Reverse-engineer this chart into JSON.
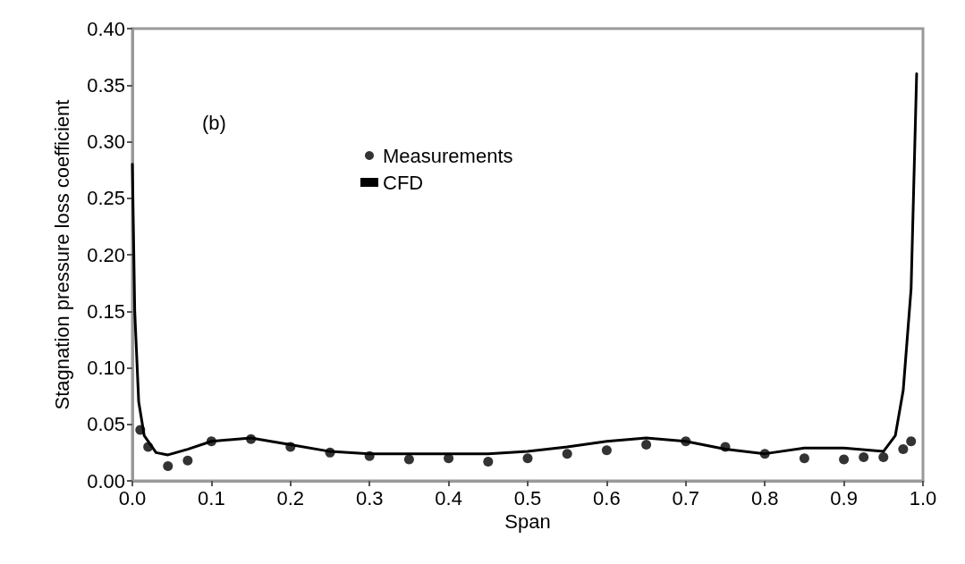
{
  "chart_data": {
    "type": "scatter",
    "xlabel": "Span",
    "ylabel": "Stagnation pressure loss coefficient",
    "annotations": [
      "(b)"
    ],
    "xlim": [
      0,
      1
    ],
    "ylim": [
      0,
      0.4
    ],
    "xticks": [
      {
        "value": 0,
        "label": "0.0"
      },
      {
        "value": 0.1,
        "label": "0.1"
      },
      {
        "value": 0.2,
        "label": "0.2"
      },
      {
        "value": 0.3,
        "label": "0.3"
      },
      {
        "value": 0.4,
        "label": "0.4"
      },
      {
        "value": 0.5,
        "label": "0.5"
      },
      {
        "value": 0.6,
        "label": "0.6"
      },
      {
        "value": 0.7,
        "label": "0.7"
      },
      {
        "value": 0.8,
        "label": "0.8"
      },
      {
        "value": 0.9,
        "label": "0.9"
      },
      {
        "value": 1,
        "label": "1.0"
      }
    ],
    "yticks": [
      {
        "value": 0,
        "label": "0.00"
      },
      {
        "value": 0.05,
        "label": "0.05"
      },
      {
        "value": 0.1,
        "label": "0.10"
      },
      {
        "value": 0.15,
        "label": "0.15"
      },
      {
        "value": 0.2,
        "label": "0.20"
      },
      {
        "value": 0.25,
        "label": "0.25"
      },
      {
        "value": 0.3,
        "label": "0.30"
      },
      {
        "value": 0.35,
        "label": "0.35"
      },
      {
        "value": 0.4,
        "label": "0.40"
      }
    ],
    "grid": false,
    "legend": "top",
    "series": [
      {
        "name": "Measurements",
        "marker": "circle",
        "color": "#000000",
        "x": [
          0.01,
          0.02,
          0.045,
          0.07,
          0.1,
          0.15,
          0.2,
          0.25,
          0.3,
          0.35,
          0.4,
          0.45,
          0.5,
          0.55,
          0.6,
          0.65,
          0.7,
          0.75,
          0.8,
          0.85,
          0.9,
          0.925,
          0.95,
          0.975,
          0.985
        ],
        "values": [
          0.045,
          0.03,
          0.013,
          0.018,
          0.035,
          0.037,
          0.03,
          0.025,
          0.022,
          0.019,
          0.02,
          0.017,
          0.02,
          0.024,
          0.027,
          0.032,
          0.035,
          0.03,
          0.024,
          0.02,
          0.019,
          0.021,
          0.021,
          0.028,
          0.035
        ]
      },
      {
        "name": "CFD",
        "type": "line",
        "color": "#000000",
        "line_style": "solid",
        "x": [
          0,
          0.003,
          0.008,
          0.015,
          0.03,
          0.045,
          0.07,
          0.1,
          0.15,
          0.2,
          0.25,
          0.3,
          0.45,
          0.5,
          0.55,
          0.6,
          0.65,
          0.7,
          0.75,
          0.8,
          0.85,
          0.9,
          0.95,
          0.965,
          0.975,
          0.985,
          0.992
        ],
        "values": [
          0.28,
          0.15,
          0.07,
          0.04,
          0.025,
          0.023,
          0.028,
          0.035,
          0.038,
          0.032,
          0.026,
          0.024,
          0.024,
          0.026,
          0.03,
          0.035,
          0.038,
          0.035,
          0.028,
          0.024,
          0.029,
          0.029,
          0.026,
          0.04,
          0.08,
          0.17,
          0.36
        ]
      }
    ]
  }
}
